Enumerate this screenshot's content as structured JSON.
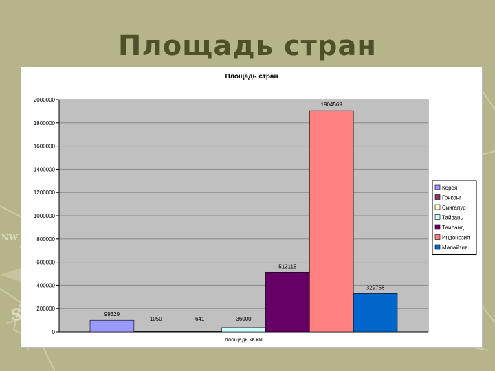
{
  "slide": {
    "title": "Площадь стран"
  },
  "chart_data": {
    "type": "bar",
    "title": "Площадь стран",
    "xlabel": "площадь кв.км",
    "ylabel": "",
    "ylim": [
      0,
      2000000
    ],
    "y_ticks": [
      "0",
      "200000",
      "400000",
      "600000",
      "800000",
      "1000000",
      "1200000",
      "1400000",
      "1600000",
      "1800000",
      "2000000"
    ],
    "grid": true,
    "legend_position": "right",
    "series": [
      {
        "name": "Корея",
        "value": 99329,
        "label": "99329",
        "color": "#9999ff"
      },
      {
        "name": "Гонконг",
        "value": 1050,
        "label": "1050",
        "color": "#993366"
      },
      {
        "name": "Сингапур",
        "value": 641,
        "label": "641",
        "color": "#ffffcc"
      },
      {
        "name": "Тайвань",
        "value": 36000,
        "label": "36000",
        "color": "#ccffff"
      },
      {
        "name": "Таиланд",
        "value": 513115,
        "label": "513115",
        "color": "#660066"
      },
      {
        "name": "Индонезия",
        "value": 1904569,
        "label": "1904569",
        "color": "#ff8080"
      },
      {
        "name": "Малайзия",
        "value": 329758,
        "label": "329758",
        "color": "#0066cc"
      }
    ],
    "plot_background": "#c0c0c0"
  }
}
